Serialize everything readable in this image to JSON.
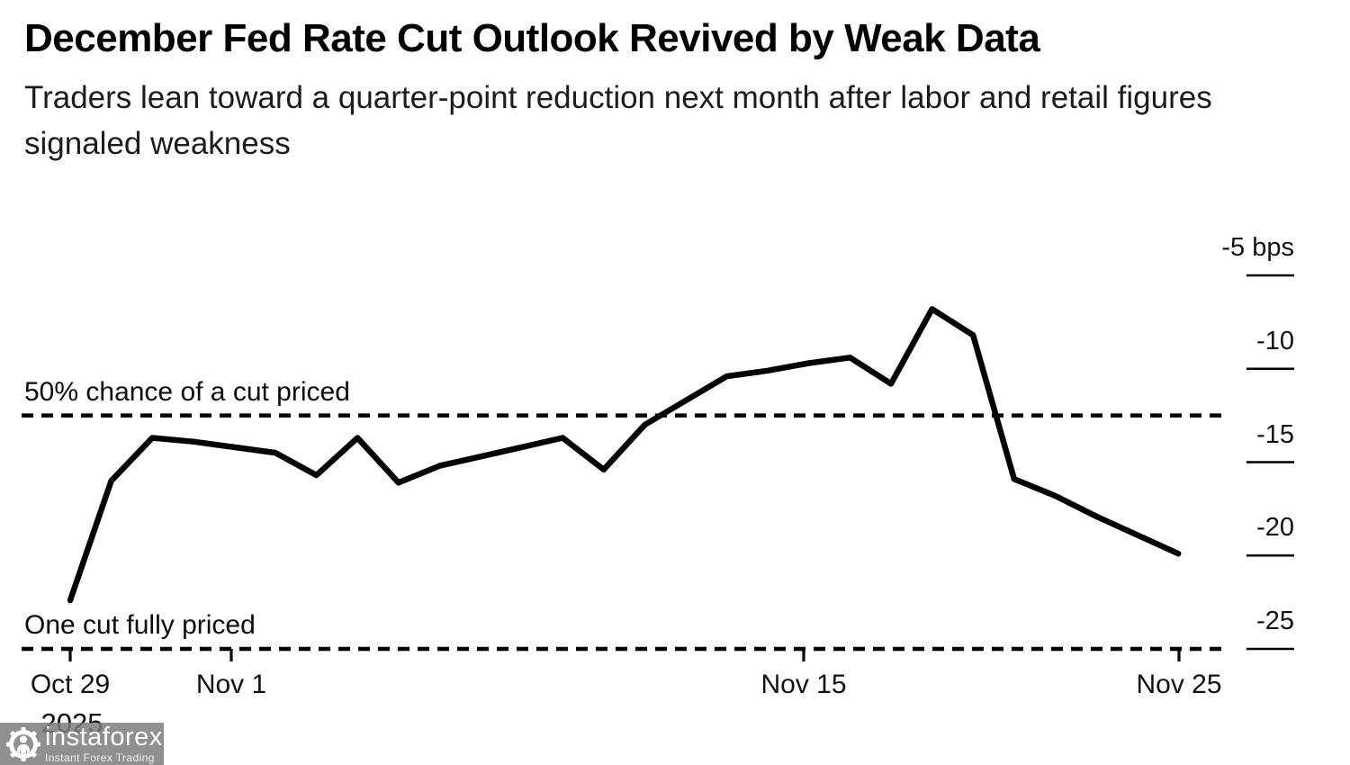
{
  "header": {
    "title": "December Fed Rate Cut Outlook Revived by Weak Data",
    "subtitle": "Traders lean toward a quarter-point reduction next month after labor and retail figures signaled weakness"
  },
  "chart_data": {
    "type": "line",
    "title": "December Fed Rate Cut Outlook Revived by Weak Data",
    "subtitle": "Traders lean toward a quarter-point reduction next month after labor and retail figures signaled weakness",
    "unit": "bps",
    "x": [
      "Oct 29",
      "Oct 30",
      "Oct 31",
      "Nov 1",
      "Nov 2",
      "Nov 3",
      "Nov 4",
      "Nov 5",
      "Nov 6",
      "Nov 7",
      "Nov 8",
      "Nov 9",
      "Nov 10",
      "Nov 11",
      "Nov 12",
      "Nov 13",
      "Nov 14",
      "Nov 15",
      "Nov 16",
      "Nov 17",
      "Nov 18",
      "Nov 19",
      "Nov 20",
      "Nov 21",
      "Nov 22",
      "Nov 23",
      "Nov 24",
      "Nov 25"
    ],
    "series": [
      {
        "name": "Rate cut priced for December Fed meeting (bps)",
        "values": [
          -22.4,
          -16.0,
          -13.7,
          -13.9,
          -14.2,
          -14.5,
          -15.7,
          -13.7,
          -16.1,
          -15.2,
          -14.7,
          -14.2,
          -13.7,
          -15.4,
          -13.0,
          -11.7,
          -10.4,
          -10.1,
          -9.7,
          -9.4,
          -10.8,
          -6.8,
          -8.2,
          -15.9,
          -16.8,
          -17.9,
          -18.9,
          -19.9
        ]
      }
    ],
    "ylim": [
      -27,
      -4
    ],
    "grid": false,
    "line_color": "#000000",
    "yaxis_ticks": [
      {
        "label": "-5 bps",
        "value": -5
      },
      {
        "label": "-10",
        "value": -10
      },
      {
        "label": "-15",
        "value": -15
      },
      {
        "label": "-20",
        "value": -20
      },
      {
        "label": "-25",
        "value": -25
      }
    ],
    "xaxis_ticks": [
      {
        "label": "Oct 29",
        "index": 0
      },
      {
        "label": "Nov 1",
        "index": 3
      },
      {
        "label": "Nov 15",
        "index": 17
      },
      {
        "label": "Nov 25",
        "index": 27
      }
    ],
    "year_label": "2025",
    "annotations": [
      {
        "label": "50% chance of a cut priced",
        "value": -12.5
      },
      {
        "label": "One cut fully priced",
        "value": -25
      }
    ]
  },
  "yaxis": {
    "ticks": [
      "-5 bps",
      "-10",
      "-15",
      "-20",
      "-25"
    ]
  },
  "xaxis": {
    "ticks": [
      "Oct 29",
      "Nov 1",
      "Nov 15",
      "Nov 25"
    ],
    "year": "2025"
  },
  "annotations": {
    "half_cut": "50% chance of a cut priced",
    "full_cut": "One cut fully priced"
  },
  "watermark": {
    "brand": "instaforex",
    "tagline": "Instant Forex Trading"
  }
}
